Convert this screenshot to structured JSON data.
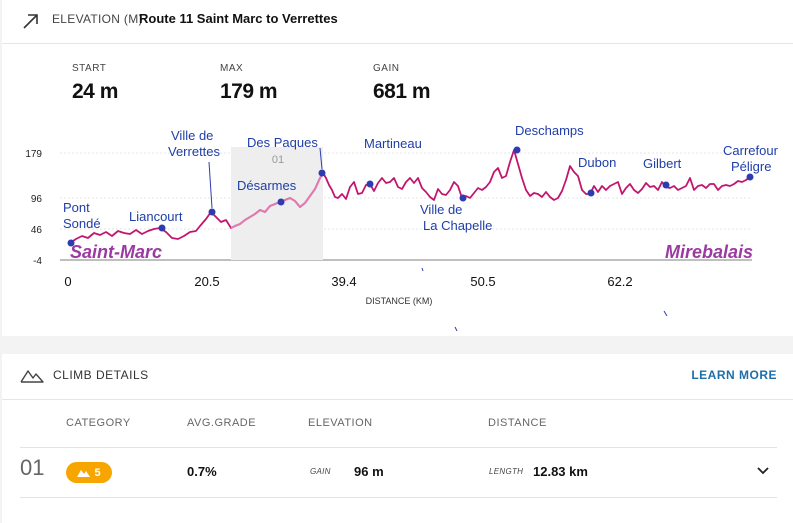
{
  "header": {
    "label": "ELEVATION (M)",
    "title": "Route 11 Saint Marc to Verrettes"
  },
  "stats": [
    {
      "label": "START",
      "value": "24 m"
    },
    {
      "label": "MAX",
      "value": "179 m"
    },
    {
      "label": "GAIN",
      "value": "681 m"
    }
  ],
  "chart_data": {
    "type": "line",
    "xlabel": "DISTANCE (KM)",
    "ylabel": "",
    "x_ticks": [
      "0",
      "20.5",
      "39.4",
      "50.5",
      "62.2"
    ],
    "y_ticks": [
      "179",
      "96",
      "46",
      "-4"
    ],
    "climb_marker": "01",
    "end_labels": {
      "start": "Saint-Marc",
      "end": "Mirebalais"
    },
    "places": [
      "Pont Sondé",
      "Liancourt",
      "Ville de Verrettes",
      "Désarmes",
      "Des Paques",
      "Martineau",
      "Ville de La Chapelle",
      "Deschamps",
      "Dubon",
      "Gilbert",
      "Carrefour Péligre"
    ]
  },
  "climb": {
    "title": "CLIMB DETAILS",
    "learn_more": "LEARN MORE",
    "columns": [
      "CATEGORY",
      "AVG.GRADE",
      "ELEVATION",
      "DISTANCE"
    ],
    "rows": [
      {
        "num": "01",
        "category": "5",
        "avg_grade": "0.7%",
        "gain_label": "GAIN",
        "gain": "96 m",
        "length_label": "LENGTH",
        "length": "12.83 km"
      }
    ]
  },
  "colors": {
    "profile": "#c2166e",
    "climb_segment": "#e07ab3",
    "marker": "#2e3cb0",
    "badge": "#f7a500",
    "accent": "#1e6fa8"
  }
}
